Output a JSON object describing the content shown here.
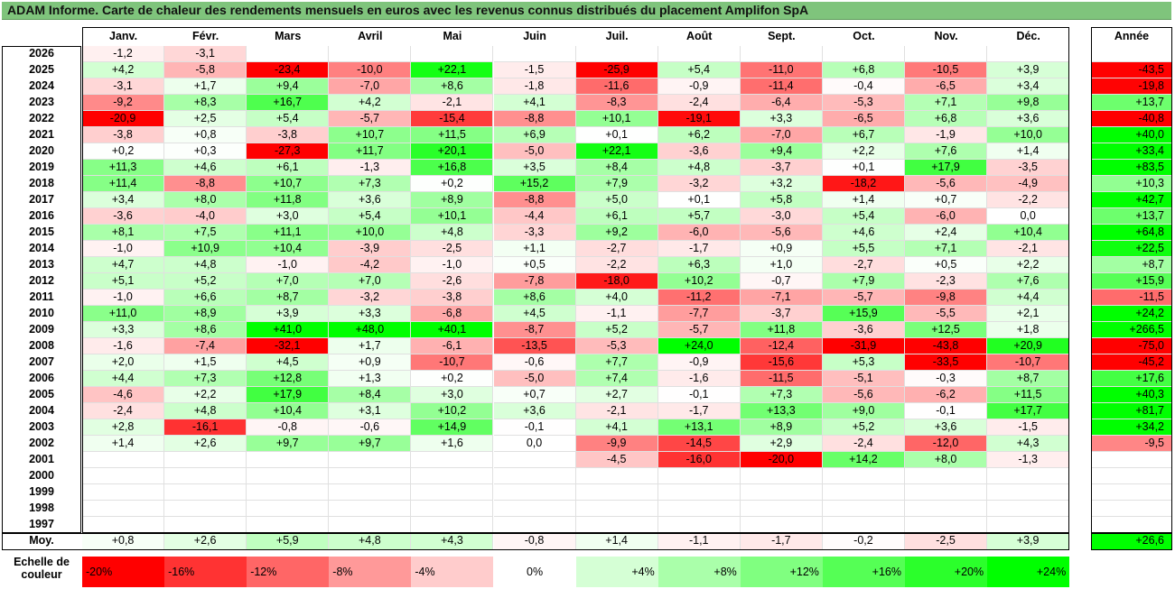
{
  "title": "ADAM Informe. Carte de chaleur des rendements mensuels en euros avec les revenus connus distribués du placement Amplifon SpA",
  "colors": {
    "positive": "#00ff00",
    "negative": "#ff0000",
    "title_bar": "#7fc47c"
  },
  "chart_data": {
    "type": "heatmap",
    "title": "ADAM Informe. Carte de chaleur des rendements mensuels en euros avec les revenus connus distribués du placement Amplifon SpA",
    "columns": [
      "Janv.",
      "Févr.",
      "Mars",
      "Avril",
      "Mai",
      "Juin",
      "Juil.",
      "Août",
      "Sept.",
      "Oct.",
      "Nov.",
      "Déc."
    ],
    "year_column_label": "Année",
    "rows": [
      {
        "year": "2026",
        "values": [
          -1.2,
          -3.1,
          null,
          null,
          null,
          null,
          null,
          null,
          null,
          null,
          null,
          null
        ],
        "year_total": null
      },
      {
        "year": "2025",
        "values": [
          4.2,
          -5.8,
          -23.4,
          -10.0,
          22.1,
          -1.5,
          -25.9,
          5.4,
          -11.0,
          6.8,
          -10.5,
          3.9
        ],
        "year_total": -43.5
      },
      {
        "year": "2024",
        "values": [
          -3.1,
          1.7,
          9.4,
          -7.0,
          8.6,
          -1.8,
          -11.6,
          -0.9,
          -11.4,
          -0.4,
          -6.5,
          3.4
        ],
        "year_total": -19.8
      },
      {
        "year": "2023",
        "values": [
          -9.2,
          8.3,
          16.7,
          4.2,
          -2.1,
          4.1,
          -8.3,
          -2.4,
          -6.4,
          -5.3,
          7.1,
          9.8
        ],
        "year_total": 13.7
      },
      {
        "year": "2022",
        "values": [
          -20.9,
          2.5,
          5.4,
          -5.7,
          -15.4,
          -8.8,
          10.1,
          -19.1,
          3.3,
          -6.5,
          6.8,
          3.6
        ],
        "year_total": -40.8
      },
      {
        "year": "2021",
        "values": [
          -3.8,
          0.8,
          -3.8,
          10.7,
          11.5,
          6.9,
          0.1,
          6.2,
          -7.0,
          6.7,
          -1.9,
          10.0
        ],
        "year_total": 40.0
      },
      {
        "year": "2020",
        "values": [
          0.2,
          0.3,
          -27.3,
          11.7,
          20.1,
          -5.0,
          22.1,
          -3.6,
          9.4,
          2.2,
          7.6,
          1.4
        ],
        "year_total": 33.4
      },
      {
        "year": "2019",
        "values": [
          11.3,
          4.6,
          6.1,
          -1.3,
          16.8,
          3.5,
          8.4,
          4.8,
          -3.7,
          0.1,
          17.9,
          -3.5
        ],
        "year_total": 83.5
      },
      {
        "year": "2018",
        "values": [
          11.4,
          -8.8,
          10.7,
          7.3,
          0.2,
          15.2,
          7.9,
          -3.2,
          3.2,
          -18.2,
          -5.6,
          -4.9
        ],
        "year_total": 10.3
      },
      {
        "year": "2017",
        "values": [
          3.4,
          8.0,
          11.8,
          3.6,
          8.9,
          -8.8,
          5.0,
          0.1,
          5.8,
          1.4,
          0.7,
          -2.2
        ],
        "year_total": 42.7
      },
      {
        "year": "2016",
        "values": [
          -3.6,
          -4.0,
          3.0,
          5.4,
          10.1,
          -4.4,
          6.1,
          5.7,
          -3.0,
          5.4,
          -6.0,
          0.0
        ],
        "year_total": 13.7
      },
      {
        "year": "2015",
        "values": [
          8.1,
          7.5,
          11.1,
          10.0,
          4.8,
          -3.3,
          9.2,
          -6.0,
          -5.6,
          4.6,
          2.4,
          10.4
        ],
        "year_total": 64.8
      },
      {
        "year": "2014",
        "values": [
          -1.0,
          10.9,
          10.4,
          -3.9,
          -2.5,
          1.1,
          -2.7,
          -1.7,
          0.9,
          5.5,
          7.1,
          -2.1
        ],
        "year_total": 22.5
      },
      {
        "year": "2013",
        "values": [
          4.7,
          4.8,
          -1.0,
          -4.2,
          -1.0,
          0.5,
          -2.2,
          6.3,
          1.0,
          -2.7,
          0.5,
          2.2
        ],
        "year_total": 8.7
      },
      {
        "year": "2012",
        "values": [
          5.1,
          5.2,
          7.0,
          7.0,
          -2.6,
          -7.8,
          -18.0,
          10.2,
          -0.7,
          7.9,
          -2.3,
          7.6
        ],
        "year_total": 15.9
      },
      {
        "year": "2011",
        "values": [
          -1.0,
          6.6,
          8.7,
          -3.2,
          -3.8,
          8.6,
          4.0,
          -11.2,
          -7.1,
          -5.7,
          -9.8,
          4.4
        ],
        "year_total": -11.5
      },
      {
        "year": "2010",
        "values": [
          11.0,
          8.9,
          3.9,
          3.3,
          -6.8,
          4.5,
          -1.1,
          -7.7,
          -3.7,
          15.9,
          -5.5,
          2.1
        ],
        "year_total": 24.2
      },
      {
        "year": "2009",
        "values": [
          3.3,
          8.6,
          41.0,
          48.0,
          40.1,
          -8.7,
          5.2,
          -5.7,
          11.8,
          -3.6,
          12.5,
          1.8
        ],
        "year_total": 266.5
      },
      {
        "year": "2008",
        "values": [
          -1.6,
          -7.4,
          -32.1,
          1.7,
          -6.1,
          -13.5,
          -5.3,
          24.0,
          -12.4,
          -31.9,
          -43.8,
          20.9
        ],
        "year_total": -75.0
      },
      {
        "year": "2007",
        "values": [
          2.0,
          1.5,
          4.5,
          0.9,
          -10.7,
          -0.6,
          7.7,
          -0.9,
          -15.6,
          5.3,
          -33.5,
          -10.7
        ],
        "year_total": -45.2
      },
      {
        "year": "2006",
        "values": [
          4.4,
          7.3,
          12.8,
          1.3,
          0.2,
          -5.0,
          7.4,
          -1.6,
          -11.5,
          -5.1,
          -0.3,
          8.7
        ],
        "year_total": 17.6
      },
      {
        "year": "2005",
        "values": [
          -4.6,
          2.2,
          17.9,
          8.4,
          3.0,
          0.7,
          2.7,
          -0.1,
          7.3,
          -5.6,
          -6.2,
          11.5
        ],
        "year_total": 40.3
      },
      {
        "year": "2004",
        "values": [
          -2.4,
          4.8,
          10.4,
          3.1,
          10.2,
          3.6,
          -2.1,
          -1.7,
          13.3,
          9.0,
          -0.1,
          17.7
        ],
        "year_total": 81.7
      },
      {
        "year": "2003",
        "values": [
          2.8,
          -16.1,
          -0.8,
          -0.6,
          14.9,
          -0.1,
          4.1,
          13.1,
          8.9,
          5.2,
          3.6,
          -1.5
        ],
        "year_total": 34.2
      },
      {
        "year": "2002",
        "values": [
          1.4,
          2.6,
          9.7,
          9.7,
          1.6,
          0.0,
          -9.9,
          -14.5,
          2.9,
          -2.4,
          -12.0,
          4.3
        ],
        "year_total": -9.5
      },
      {
        "year": "2001",
        "values": [
          null,
          null,
          null,
          null,
          null,
          null,
          -4.5,
          -16.0,
          -20.0,
          14.2,
          8.0,
          -1.3
        ],
        "year_total": null
      },
      {
        "year": "2000",
        "values": [
          null,
          null,
          null,
          null,
          null,
          null,
          null,
          null,
          null,
          null,
          null,
          null
        ],
        "year_total": null
      },
      {
        "year": "1999",
        "values": [
          null,
          null,
          null,
          null,
          null,
          null,
          null,
          null,
          null,
          null,
          null,
          null
        ],
        "year_total": null
      },
      {
        "year": "1998",
        "values": [
          null,
          null,
          null,
          null,
          null,
          null,
          null,
          null,
          null,
          null,
          null,
          null
        ],
        "year_total": null
      },
      {
        "year": "1997",
        "values": [
          null,
          null,
          null,
          null,
          null,
          null,
          null,
          null,
          null,
          null,
          null,
          null
        ],
        "year_total": null
      }
    ],
    "average": {
      "label": "Moy.",
      "values": [
        0.8,
        2.6,
        5.9,
        4.8,
        4.3,
        -0.8,
        1.4,
        -1.1,
        -1.7,
        -0.2,
        -2.5,
        3.9
      ],
      "year_total": 26.6
    },
    "color_scale": {
      "label": "Echelle de couleur",
      "stops": [
        -20,
        -16,
        -12,
        -8,
        -4,
        0,
        4,
        8,
        12,
        16,
        20,
        24
      ],
      "stop_labels": [
        "-20%",
        "-16%",
        "-12%",
        "-8%",
        "-4%",
        "0%",
        "+4%",
        "+8%",
        "+12%",
        "+16%",
        "+20%",
        "+24%"
      ]
    }
  }
}
